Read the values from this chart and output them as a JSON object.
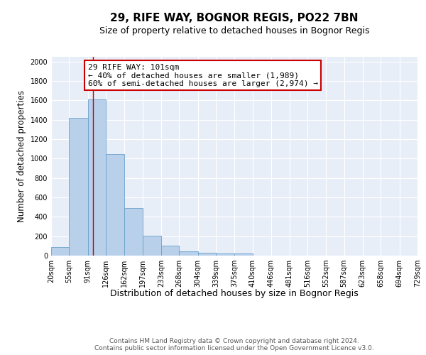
{
  "title": "29, RIFE WAY, BOGNOR REGIS, PO22 7BN",
  "subtitle": "Size of property relative to detached houses in Bognor Regis",
  "xlabel": "Distribution of detached houses by size in Bognor Regis",
  "ylabel": "Number of detached properties",
  "bar_edges": [
    20,
    55,
    91,
    126,
    162,
    197,
    233,
    268,
    304,
    339,
    375,
    410,
    446,
    481,
    516,
    552,
    587,
    623,
    658,
    694,
    729
  ],
  "bar_heights": [
    85,
    1420,
    1610,
    1050,
    490,
    205,
    105,
    42,
    28,
    22,
    20,
    0,
    0,
    0,
    0,
    0,
    0,
    0,
    0,
    0
  ],
  "bar_color": "#b8d0ea",
  "bar_edge_color": "#6aa0cc",
  "background_color": "#e8eef8",
  "grid_color": "#ffffff",
  "property_line_x": 101,
  "property_line_color": "#cc0000",
  "annotation_text": "29 RIFE WAY: 101sqm\n← 40% of detached houses are smaller (1,989)\n60% of semi-detached houses are larger (2,974) →",
  "annotation_box_color": "#ffffff",
  "annotation_box_edge_color": "#cc0000",
  "ylim": [
    0,
    2050
  ],
  "yticks": [
    0,
    200,
    400,
    600,
    800,
    1000,
    1200,
    1400,
    1600,
    1800,
    2000
  ],
  "footer_text": "Contains HM Land Registry data © Crown copyright and database right 2024.\nContains public sector information licensed under the Open Government Licence v3.0.",
  "title_fontsize": 11,
  "subtitle_fontsize": 9,
  "xlabel_fontsize": 9,
  "ylabel_fontsize": 8.5,
  "tick_fontsize": 7,
  "annotation_fontsize": 8,
  "footer_fontsize": 6.5
}
